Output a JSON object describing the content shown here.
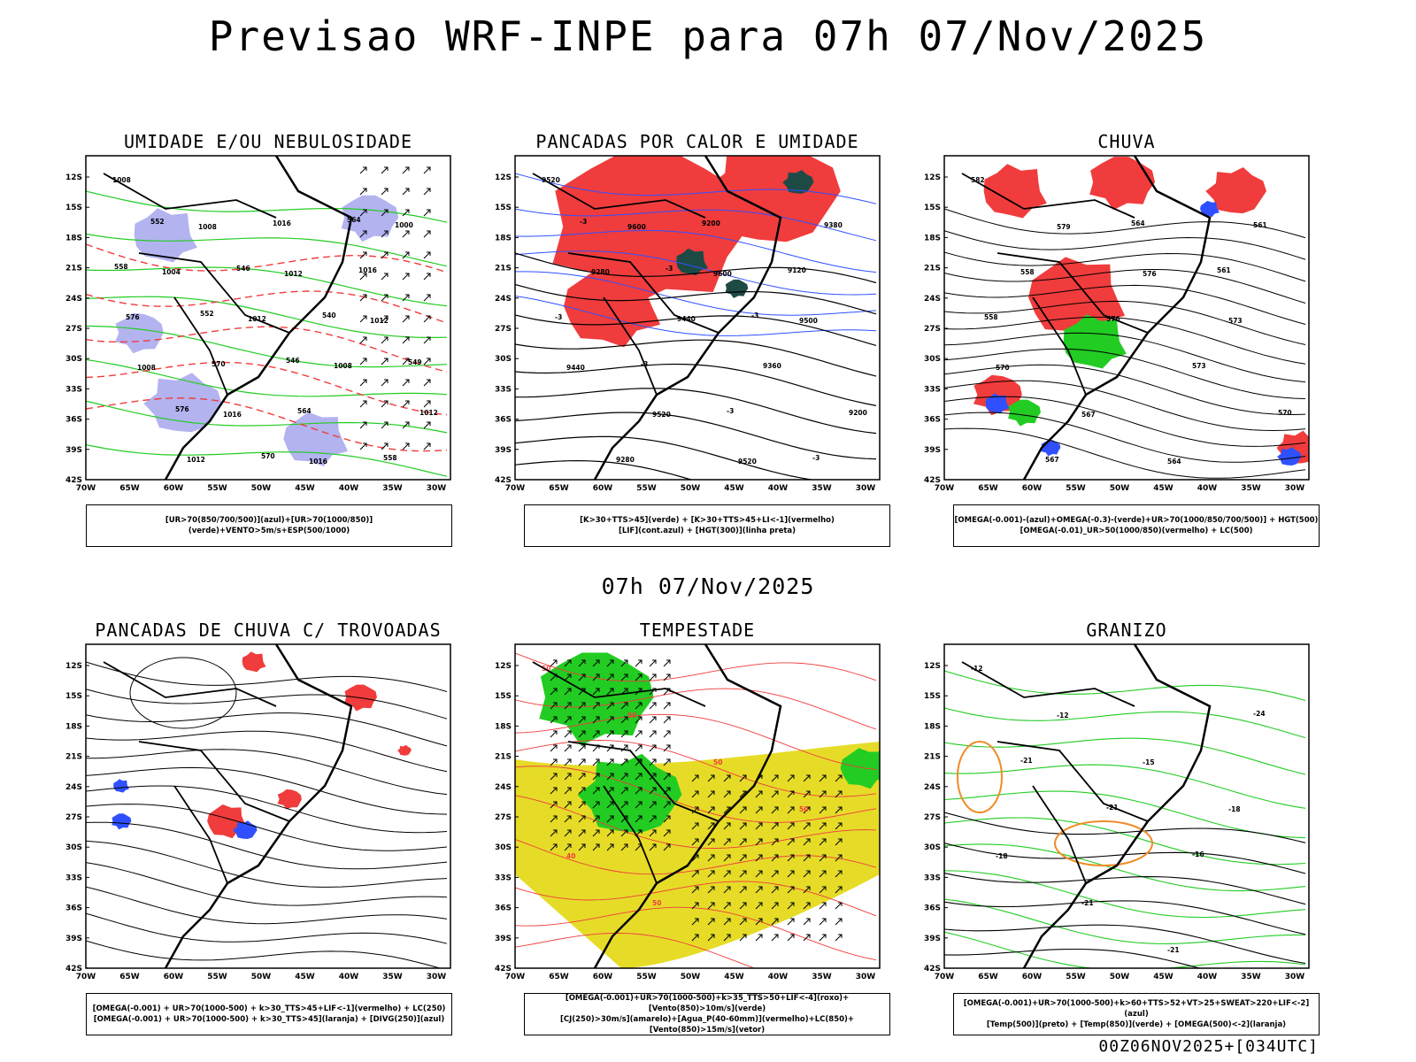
{
  "title": "Previsao WRF-INPE  para 07h 07/Nov/2025",
  "subtitle": "07h 07/Nov/2025",
  "footer": "00Z06NOV2025+[034UTC]",
  "colors": {
    "ur_high_blue": "#b3b3f0",
    "green": "#22cc22",
    "red": "#f03c3c",
    "dark_teal": "#1e4a46",
    "blue": "#3050ff",
    "yellow": "#e6dc28",
    "orange": "#f08c28",
    "black": "#000000"
  },
  "axes": {
    "lat_labels": [
      "12S",
      "15S",
      "18S",
      "21S",
      "24S",
      "27S",
      "30S",
      "33S",
      "36S",
      "39S",
      "42S"
    ],
    "lon_labels": [
      "70W",
      "65W",
      "60W",
      "55W",
      "50W",
      "45W",
      "40W",
      "35W",
      "30W"
    ]
  },
  "panels": [
    {
      "id": "umidade",
      "title": "UMIDADE E/OU NEBULOSIDADE",
      "legend": [
        "[UR>70(850/700/500)](azul)+[UR>70(1000/850)](verde)+VENTO>5m/s+ESP(500/1000)"
      ],
      "contour_labels": [
        "1008",
        "1008",
        "1012",
        "1012",
        "1008",
        "1016",
        "1016",
        "1000",
        "1004",
        "1012",
        "1008",
        "1012",
        "1012",
        "1016",
        "1016",
        "576",
        "570",
        "564",
        "558",
        "552",
        "546",
        "540",
        "549",
        "576",
        "570",
        "564",
        "558",
        "552",
        "546"
      ]
    },
    {
      "id": "pancadas_calor",
      "title": "PANCADAS POR CALOR E UMIDADE",
      "legend": [
        "[K>30+TTS>45](verde) + [K>30+TTS>45+LI<-1](vermelho)",
        "[LIF](cont.azul) + [HGT(300)](linha preta)"
      ],
      "contour_labels": [
        "9520",
        "9600",
        "9600",
        "9500",
        "9440",
        "9520",
        "9520",
        "9380",
        "9280",
        "9440",
        "9360",
        "9200",
        "9280",
        "9200",
        "9120",
        "-3",
        "-3",
        "-3",
        "-3",
        "-3",
        "-3",
        "-3"
      ]
    },
    {
      "id": "chuva",
      "title": "CHUVA",
      "legend": [
        "[OMEGA(-0.001)-(azul)+OMEGA(-0.3)-(verde)+UR>70(1000/850/700/500)] + HGT(500)",
        "[OMEGA(-0.01)_UR>50(1000/850)(vermelho) + LC(500)"
      ],
      "contour_labels": [
        "582",
        "579",
        "576",
        "573",
        "570",
        "567",
        "564",
        "561",
        "558",
        "576",
        "573",
        "570",
        "567",
        "564",
        "561",
        "558"
      ]
    },
    {
      "id": "trovoadas",
      "title": "PANCADAS DE CHUVA C/ TROVOADAS",
      "legend": [
        "[OMEGA(-0.001) + UR>70(1000-500) + k>30_TTS>45+LIF<-1](vermelho) + LC(250)",
        "[OMEGA(-0.001) + UR>70(1000-500) + k>30_TTS>45](laranja) + [DIVG(250)](azul)"
      ],
      "contour_labels": []
    },
    {
      "id": "tempestade",
      "title": "TEMPESTADE",
      "legend": [
        "[OMEGA(-0.001)+UR>70(1000-500)+k>35_TTS>50+LIF<-4](roxo)+[Vento(850)>10m/s](verde)",
        "[CJ(250)>30m/s](amarelo)+[Agua_P(40-60mm)](vermelho)+LC(850)+[Vento(850)>15m/s](vetor)"
      ],
      "contour_labels": [
        "50",
        "50",
        "50",
        "50",
        "40",
        "50"
      ]
    },
    {
      "id": "granizo",
      "title": "GRANIZO",
      "legend": [
        "[OMEGA(-0.001)+UR>70(1000-500)+k>60+TTS>52+VT>25+SWEAT>220+LIF<-2](azul)",
        "[Temp(500)](preto) + [Temp(850)](verde) + [OMEGA(500)<-2](laranja)"
      ],
      "contour_labels": [
        "-12",
        "-12",
        "-15",
        "-18",
        "-18",
        "-21",
        "-21",
        "-24",
        "-21",
        "-21",
        "-16"
      ]
    }
  ]
}
